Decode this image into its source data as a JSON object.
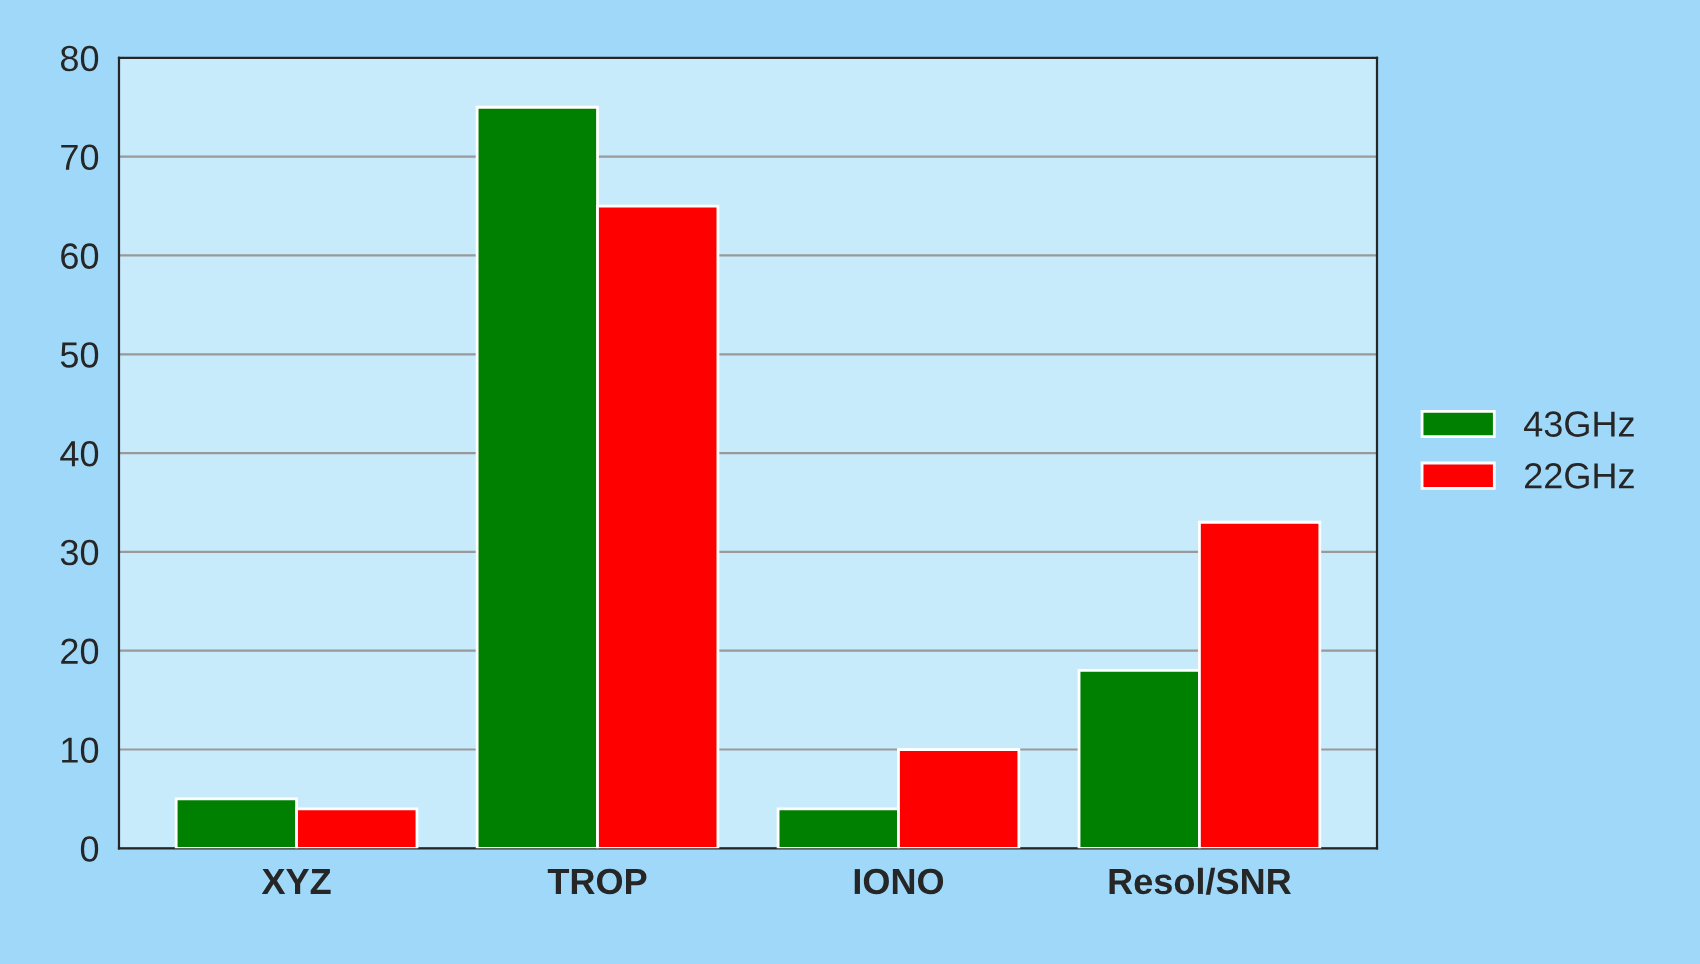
{
  "chart_data": {
    "type": "bar",
    "categories": [
      "XYZ",
      "TROP",
      "IONO",
      "Resol/SNR"
    ],
    "series": [
      {
        "name": "43GHz",
        "color": "#008000",
        "values": [
          5,
          75,
          4,
          18
        ]
      },
      {
        "name": "22GHz",
        "color": "#ff0000",
        "values": [
          4,
          65,
          10,
          33
        ]
      }
    ],
    "ylim": [
      0,
      80
    ],
    "yticks": [
      0,
      10,
      20,
      30,
      40,
      50,
      60,
      70,
      80
    ],
    "grid": "y",
    "legend": "right"
  }
}
